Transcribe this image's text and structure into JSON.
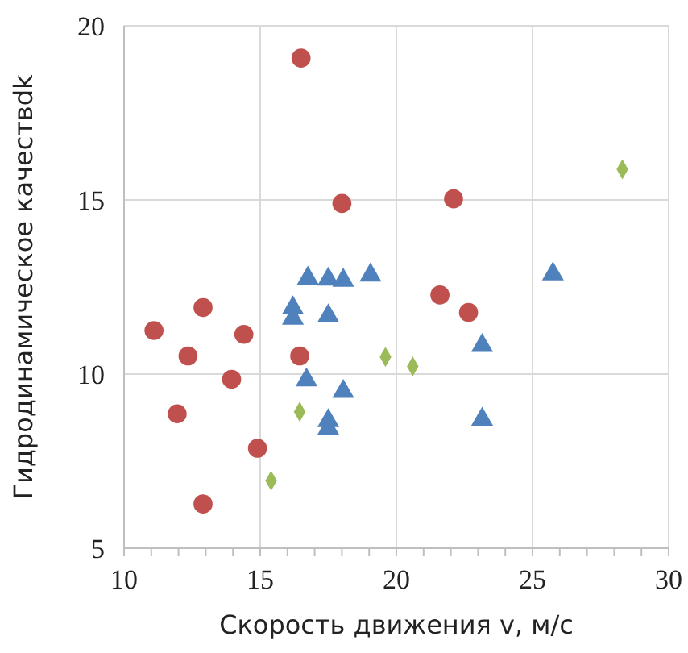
{
  "chart_data": {
    "type": "scatter",
    "xlabel": "Скорость движения  v, м/с",
    "ylabel": "Гидродинамическое качествdk",
    "xlim": [
      10,
      30
    ],
    "ylim": [
      5,
      20
    ],
    "xticks": [
      10,
      {
        "value": 11,
        "label": null
      },
      {
        "value": 12,
        "label": null
      },
      {
        "value": 13,
        "label": null
      },
      {
        "value": 14,
        "label": null
      },
      15,
      {
        "value": 16,
        "label": null
      },
      {
        "value": 17,
        "label": null
      },
      {
        "value": 18,
        "label": null
      },
      {
        "value": 19,
        "label": null
      },
      20,
      {
        "value": 21,
        "label": null
      },
      {
        "value": 22,
        "label": null
      },
      {
        "value": 23,
        "label": null
      },
      {
        "value": 24,
        "label": null
      },
      25,
      {
        "value": 26,
        "label": null
      },
      {
        "value": 27,
        "label": null
      },
      {
        "value": 28,
        "label": null
      },
      {
        "value": 29,
        "label": null
      },
      30
    ],
    "yticks": [
      5,
      10,
      15,
      20
    ],
    "grid": true,
    "series": [
      {
        "color": "#c0504d",
        "marker": "circle",
        "x": [
          16.5,
          18.0,
          22.1,
          21.6,
          22.65,
          12.9,
          11.1,
          14.4,
          12.35,
          16.45,
          13.95,
          11.95,
          14.9,
          12.9
        ],
        "values": [
          19.07,
          14.9,
          15.03,
          12.27,
          11.77,
          11.91,
          11.25,
          11.14,
          10.52,
          10.52,
          9.85,
          8.86,
          7.87,
          6.27
        ]
      },
      {
        "color": "#4f81bd",
        "marker": "triangle",
        "x": [
          16.75,
          17.5,
          18.05,
          19.05,
          16.2,
          16.2,
          17.5,
          25.75,
          23.15,
          16.7,
          18.05,
          17.5,
          17.5,
          23.15
        ],
        "values": [
          12.75,
          12.72,
          12.69,
          12.84,
          11.9,
          11.6,
          11.67,
          12.87,
          10.82,
          9.83,
          9.5,
          8.66,
          8.44,
          8.7
        ]
      },
      {
        "color": "#9bbb59",
        "marker": "diamond",
        "x": [
          28.3,
          19.6,
          20.6,
          16.45,
          15.4
        ],
        "values": [
          15.88,
          10.49,
          10.22,
          8.92,
          6.94
        ]
      }
    ]
  }
}
